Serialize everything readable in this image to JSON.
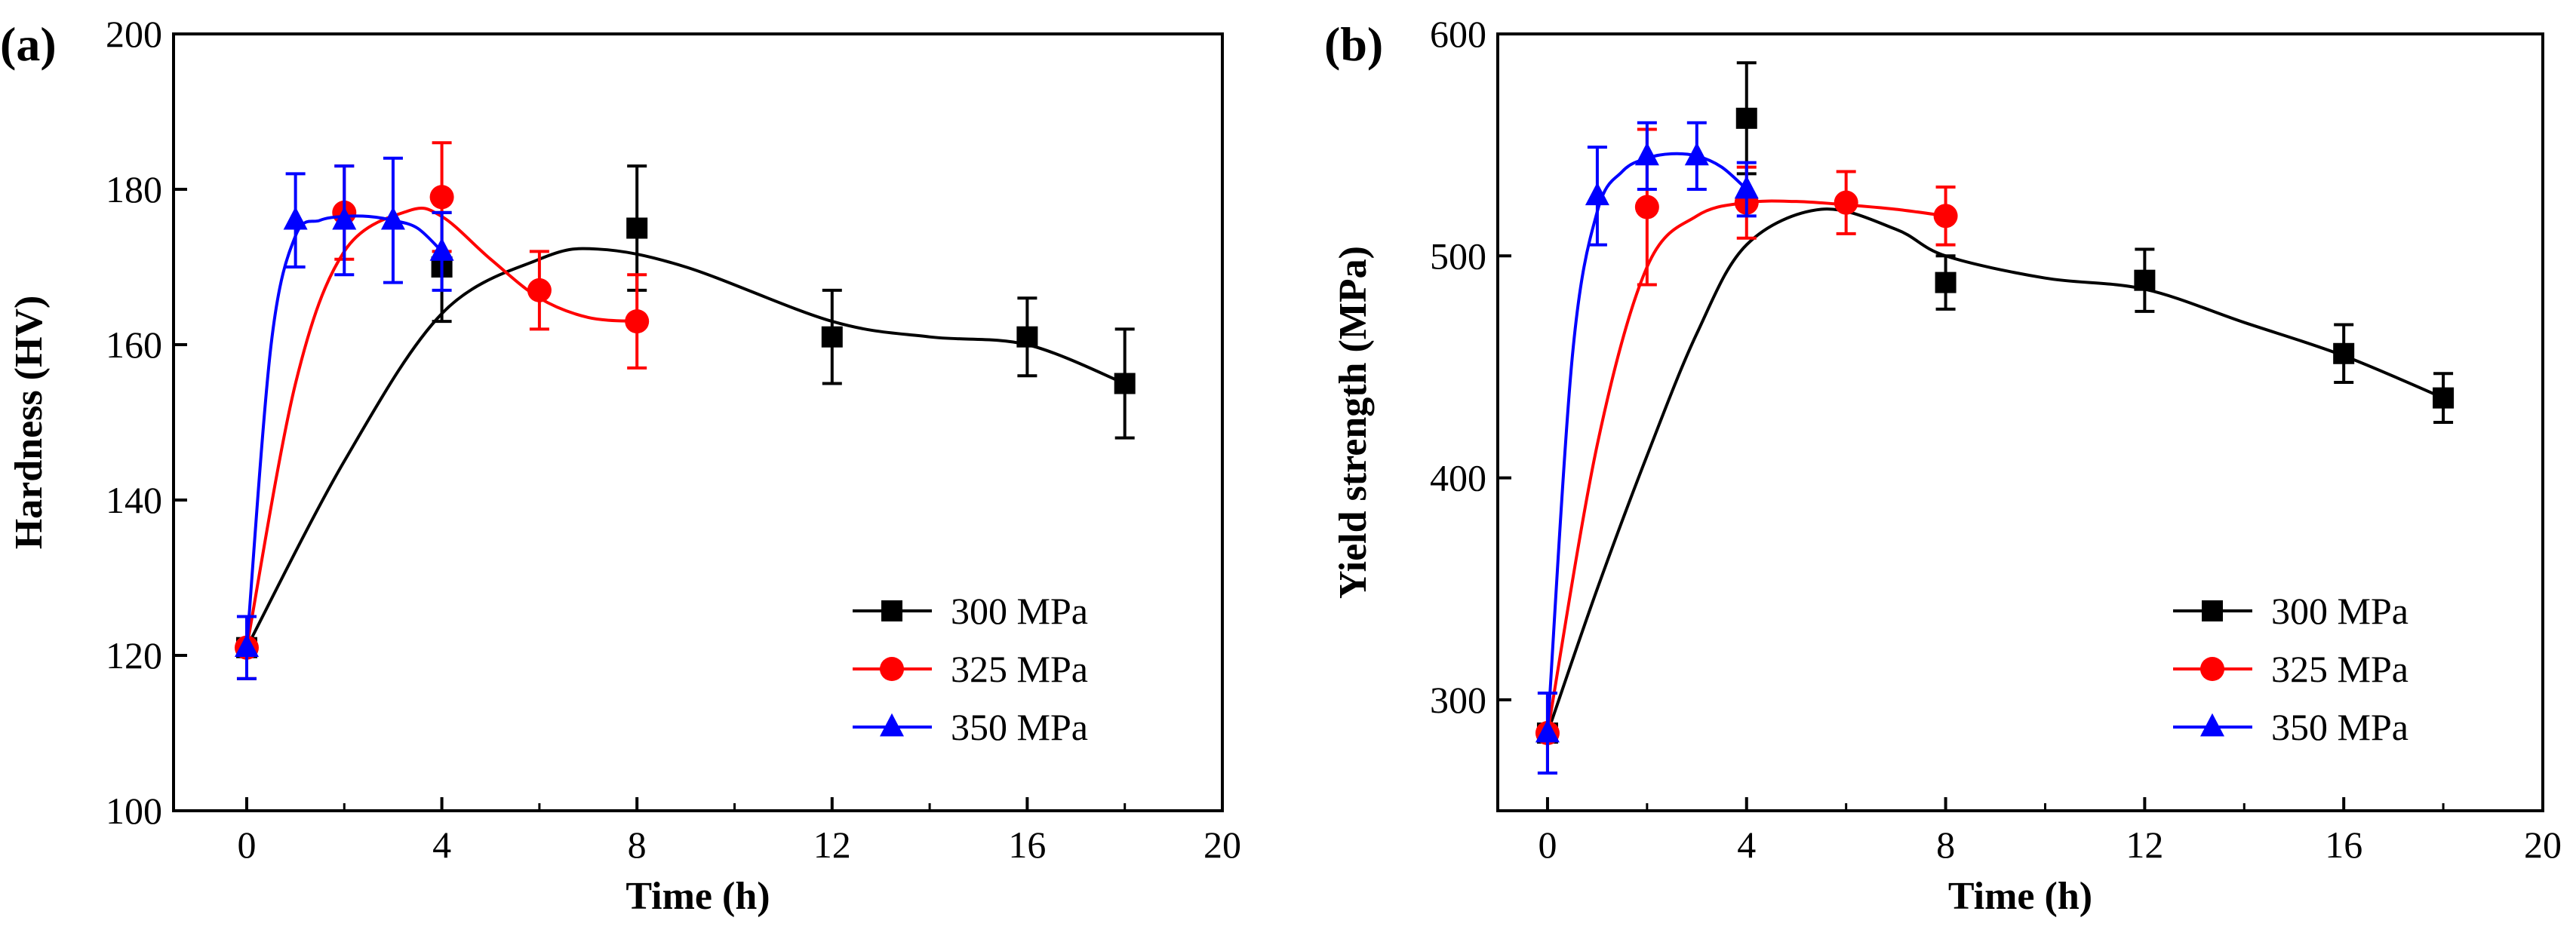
{
  "chart_data": [
    {
      "type": "line",
      "panel_label": "(a)",
      "title": "",
      "xlabel": "Time (h)",
      "ylabel": "Hardness (HV)",
      "xlim": [
        -1.5,
        20
      ],
      "ylim": [
        100,
        200
      ],
      "xticks": [
        "0",
        "4",
        "8",
        "12",
        "16",
        "20"
      ],
      "yticks": [
        "100",
        "120",
        "140",
        "160",
        "180",
        "200"
      ],
      "legend_position": "bottom-right",
      "series": [
        {
          "name": "300 MPa",
          "color": "#000000",
          "marker": "square",
          "x": [
            0,
            4,
            8,
            12,
            16,
            18
          ],
          "y": [
            121,
            170,
            175,
            161,
            161,
            155
          ],
          "err": [
            4,
            7,
            8,
            6,
            5,
            7
          ],
          "fit_x": [
            0,
            2,
            4,
            6,
            7.2,
            9,
            12,
            14,
            16,
            18
          ],
          "fit_y": [
            121,
            145,
            164,
            171,
            172.3,
            170,
            163,
            161,
            160,
            155
          ]
        },
        {
          "name": "325 MPa",
          "color": "#ff0000",
          "marker": "circle",
          "x": [
            0,
            2,
            4,
            6,
            8
          ],
          "y": [
            121,
            177,
            179,
            167,
            163
          ],
          "err": [
            4,
            6,
            7,
            5,
            6
          ],
          "fit_x": [
            0,
            1,
            2,
            3.3,
            4,
            5,
            6,
            7,
            8
          ],
          "fit_y": [
            121,
            155,
            172,
            177.2,
            176.5,
            171,
            166,
            163.5,
            163
          ]
        },
        {
          "name": "350 MPa",
          "color": "#0000ff",
          "marker": "triangle",
          "x": [
            0,
            1,
            2,
            3,
            4
          ],
          "y": [
            121,
            176,
            176,
            176,
            172
          ],
          "err": [
            4,
            6,
            7,
            8,
            5
          ],
          "fit_x": [
            0,
            0.5,
            1,
            1.5,
            2,
            2.5,
            3,
            3.5,
            4
          ],
          "fit_y": [
            121,
            160,
            174,
            176,
            176.5,
            176.5,
            176,
            175,
            172
          ]
        }
      ]
    },
    {
      "type": "line",
      "panel_label": "(b)",
      "title": "",
      "xlabel": "Time (h)",
      "ylabel": "Yield strength (MPa)",
      "xlim": [
        -1,
        20
      ],
      "ylim": [
        250,
        600
      ],
      "xticks": [
        "0",
        "4",
        "8",
        "12",
        "16",
        "20"
      ],
      "yticks": [
        "300",
        "400",
        "500",
        "600"
      ],
      "legend_position": "bottom-right",
      "series": [
        {
          "name": "300 MPa",
          "color": "#000000",
          "marker": "square",
          "x": [
            0,
            4,
            8,
            12,
            16,
            18
          ],
          "y": [
            285,
            562,
            488,
            489,
            456,
            436
          ],
          "err": [
            18,
            25,
            12,
            14,
            13,
            11
          ],
          "fit_x": [
            0,
            1,
            2,
            3,
            4,
            5.5,
            7,
            8,
            10,
            12,
            14,
            16,
            18
          ],
          "fit_y": [
            285,
            350,
            410,
            465,
            505,
            521,
            512,
            500,
            490,
            485,
            470,
            455,
            436
          ]
        },
        {
          "name": "325 MPa",
          "color": "#ff0000",
          "marker": "circle",
          "x": [
            0,
            2,
            4,
            6,
            8
          ],
          "y": [
            285,
            522,
            524,
            524,
            518
          ],
          "err": [
            18,
            35,
            16,
            14,
            13
          ],
          "fit_x": [
            0,
            1,
            2,
            3,
            4,
            5,
            6,
            7,
            8
          ],
          "fit_y": [
            285,
            415,
            495,
            518,
            524,
            524.5,
            523,
            521,
            518
          ]
        },
        {
          "name": "350 MPa",
          "color": "#0000ff",
          "marker": "triangle",
          "x": [
            0,
            1,
            2,
            3,
            4
          ],
          "y": [
            285,
            527,
            545,
            545,
            530
          ],
          "err": [
            18,
            22,
            15,
            15,
            12
          ],
          "fit_x": [
            0,
            0.5,
            1,
            1.5,
            2,
            2.5,
            3,
            3.5,
            4
          ],
          "fit_y": [
            285,
            455,
            520,
            538,
            544,
            546,
            545,
            540,
            530
          ]
        }
      ]
    }
  ]
}
